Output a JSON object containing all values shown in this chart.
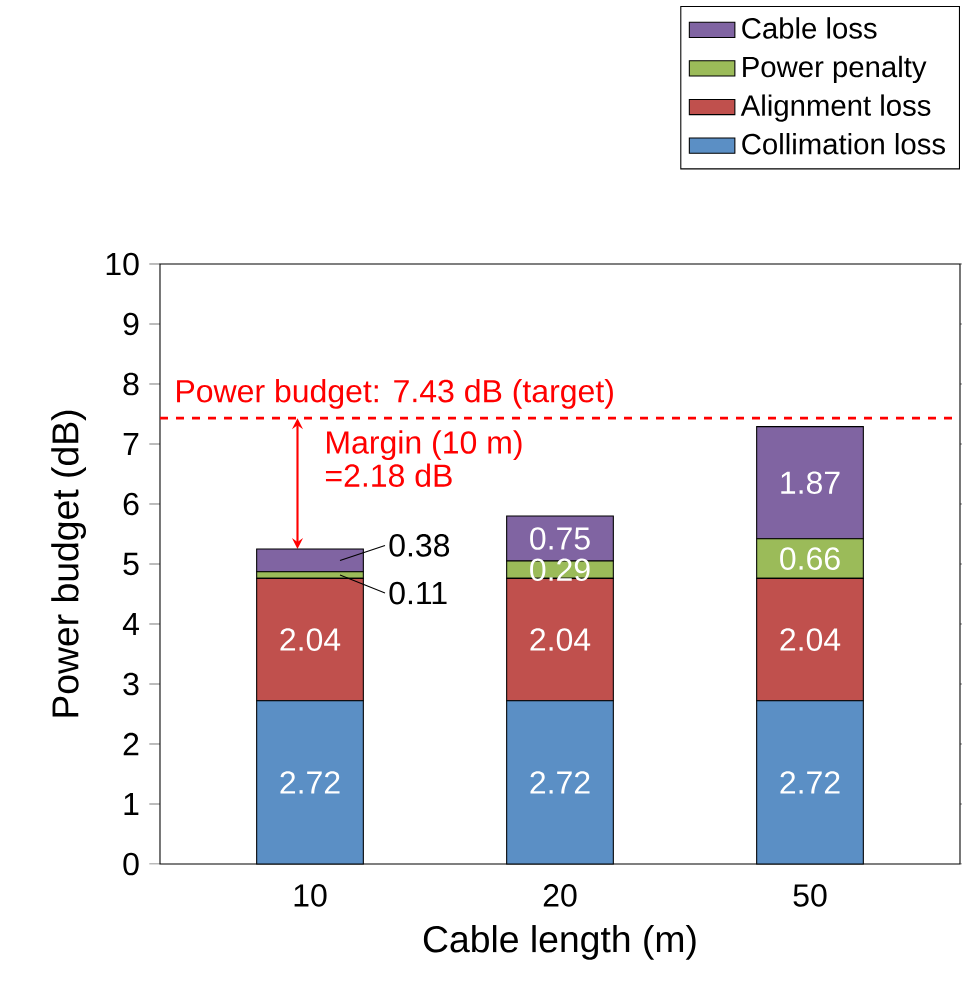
{
  "chart_data": {
    "type": "bar",
    "stacked": true,
    "xlabel": "Cable length (m)",
    "ylabel": "Power budget (dB)",
    "categories": [
      "10",
      "20",
      "50"
    ],
    "ylim": [
      0,
      10
    ],
    "yticks": [
      0,
      1,
      2,
      3,
      4,
      5,
      6,
      7,
      8,
      9,
      10
    ],
    "legend": "top right",
    "data_labels": true,
    "series": [
      {
        "name": "Collimation loss",
        "color": "#5b8fc5",
        "values": [
          2.72,
          2.72,
          2.72
        ]
      },
      {
        "name": "Alignment loss",
        "color": "#c0504d",
        "values": [
          2.04,
          2.04,
          2.04
        ]
      },
      {
        "name": "Power penalty",
        "color": "#9bbb59",
        "values": [
          0.11,
          0.29,
          0.66
        ]
      },
      {
        "name": "Cable loss",
        "color": "#8064a2",
        "values": [
          0.38,
          0.75,
          1.87
        ]
      }
    ],
    "ref_lines": [
      {
        "axis": "y",
        "value": 7.43,
        "label": "Power budget: 7.43 dB (target)",
        "color": "#ff0000",
        "line_style": "dashed"
      }
    ],
    "annotations": [
      {
        "text": "Margin (10 m)",
        "x": "10",
        "y": 5.25
      },
      "=2.18 dB"
    ]
  }
}
